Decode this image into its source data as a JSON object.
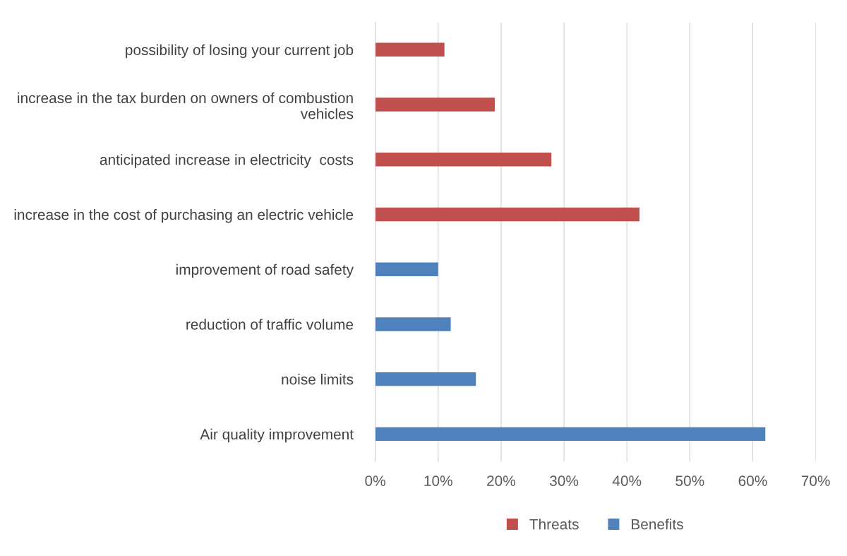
{
  "chart_data": {
    "type": "bar",
    "orientation": "horizontal",
    "categories": [
      "possibility of losing your current job",
      "increase in the tax burden on owners of combustion vehicles",
      "anticipated increase in electricity  costs",
      "increase in the cost of purchasing an electric vehicle",
      "improvement of road safety",
      "reduction of traffic volume",
      "noise limits",
      "Air quality improvement"
    ],
    "series": [
      {
        "name": "Threats",
        "color": "#c0504d",
        "values": [
          11,
          19,
          28,
          42,
          null,
          null,
          null,
          null
        ]
      },
      {
        "name": "Benefits",
        "color": "#4f81bd",
        "values": [
          null,
          null,
          null,
          null,
          10,
          12,
          16,
          62
        ]
      }
    ],
    "xlim": [
      0,
      70
    ],
    "xticks": [
      {
        "value": 0,
        "label": "0%"
      },
      {
        "value": 10,
        "label": "10%"
      },
      {
        "value": 20,
        "label": "20%"
      },
      {
        "value": 30,
        "label": "30%"
      },
      {
        "value": 40,
        "label": "40%"
      },
      {
        "value": 50,
        "label": "50%"
      },
      {
        "value": 60,
        "label": "60%"
      },
      {
        "value": 70,
        "label": "70%"
      }
    ],
    "grid": "x",
    "legend": "bottom"
  }
}
